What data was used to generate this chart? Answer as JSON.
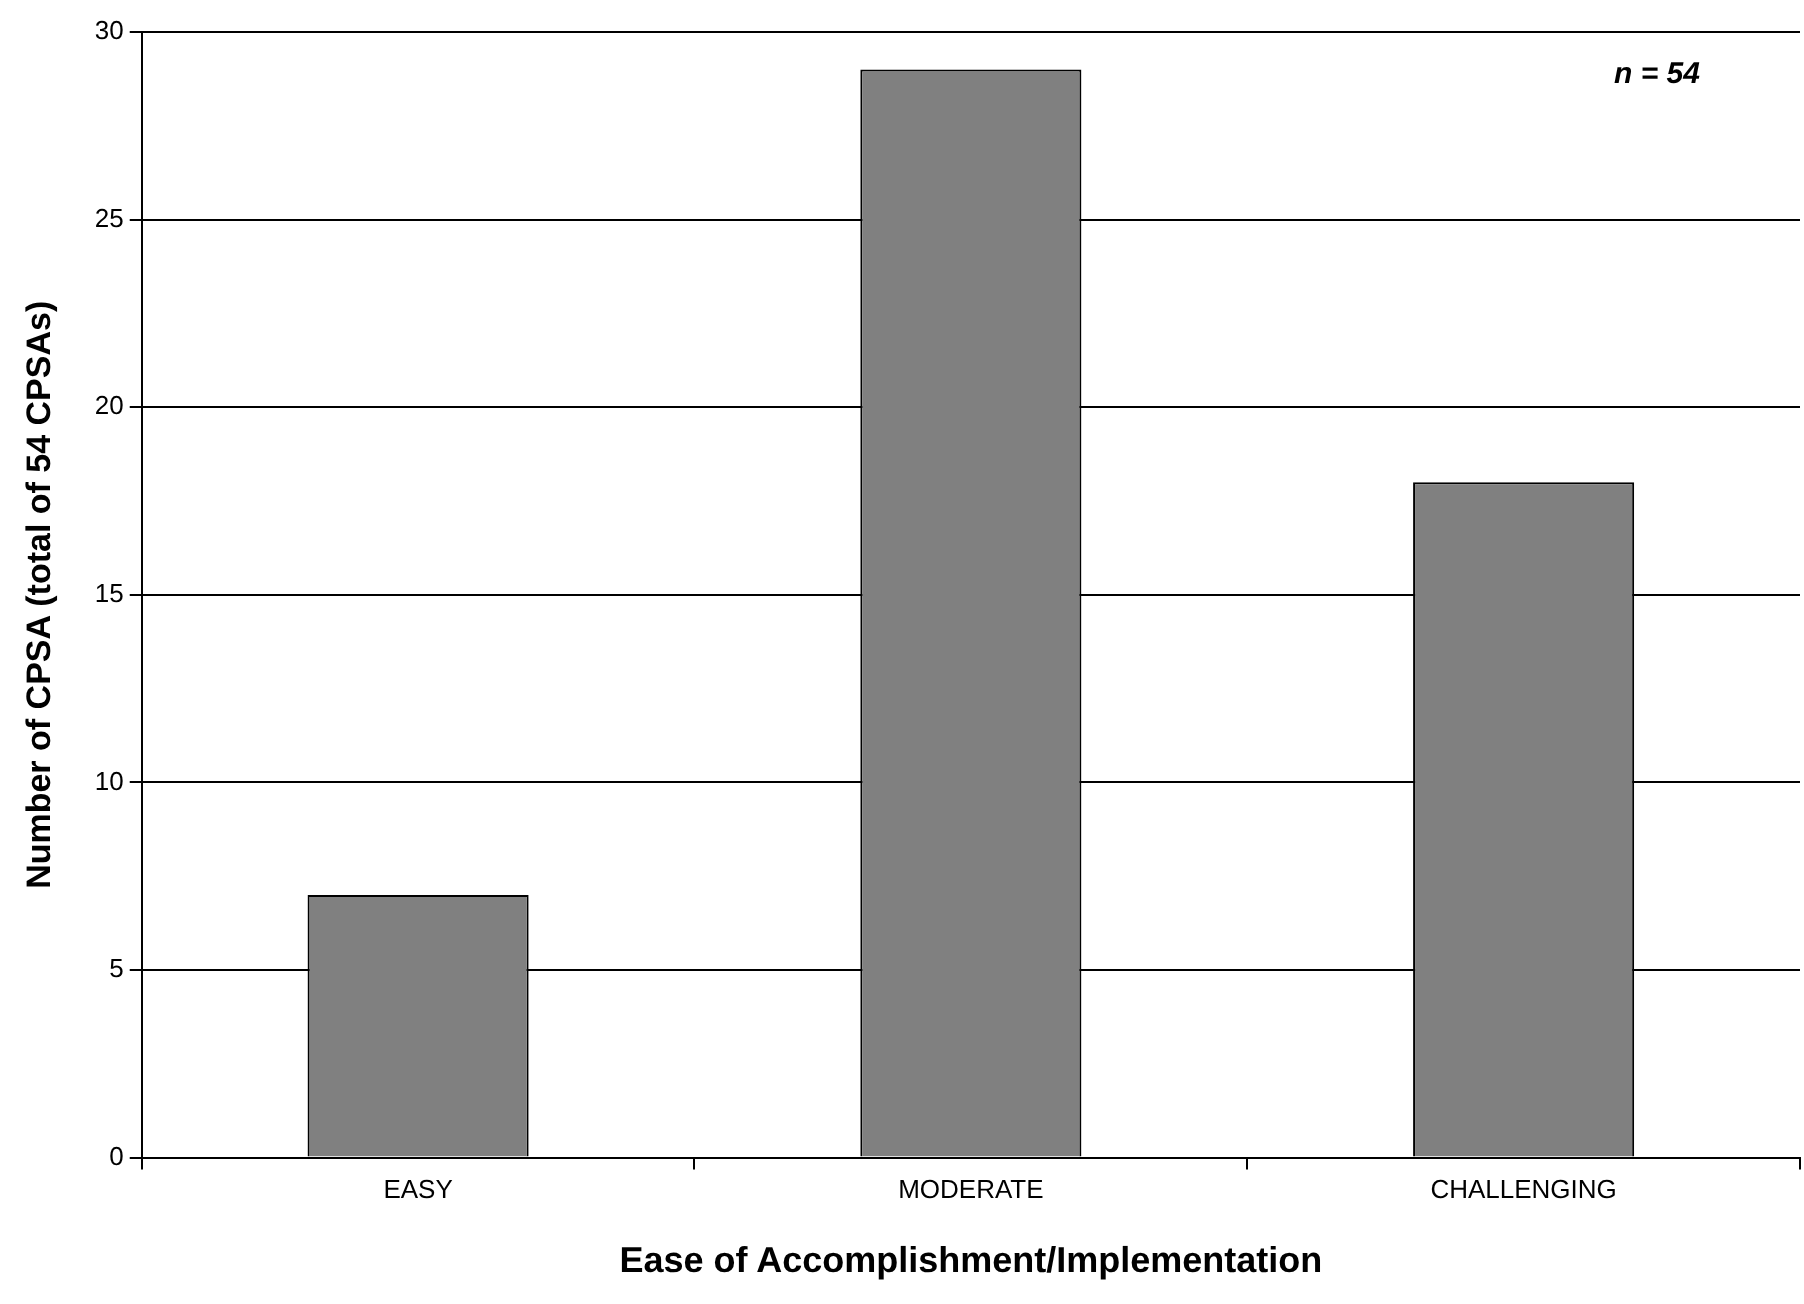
{
  "chart_data": {
    "type": "bar",
    "xlabel": "Ease of Accomplishment/Implementation",
    "ylabel": "Number of CPSA (total of 54 CPSAs)",
    "categories": [
      "EASY",
      "MODERATE",
      "CHALLENGING"
    ],
    "values": [
      7,
      29,
      18
    ],
    "color": "#808080",
    "ylim": [
      0,
      30
    ],
    "yticks": [
      0,
      5,
      10,
      15,
      20,
      25,
      30
    ],
    "grid": "y",
    "annotations": [
      "n = 54"
    ]
  }
}
